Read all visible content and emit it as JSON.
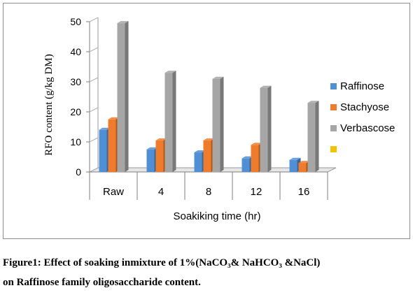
{
  "chart_data": {
    "type": "bar",
    "ylabel": "RFO content (g/kg DM)",
    "xlabel": "Soakiking time (hr)",
    "categories": [
      "Raw",
      "4",
      "8",
      "12",
      "16"
    ],
    "ylim": [
      0,
      50
    ],
    "yticks": [
      "0",
      "10",
      "20",
      "30",
      "40",
      "50"
    ],
    "series": [
      {
        "name": "Raffinose",
        "color": "#4f8fd6",
        "values": [
          14,
          7.5,
          6.5,
          4.5,
          4
        ]
      },
      {
        "name": "Stachyose",
        "color": "#f07b2a",
        "values": [
          17.5,
          10.5,
          10.5,
          9,
          3
        ]
      },
      {
        "name": "Verbascose",
        "color": "#a6a6a6",
        "values": [
          49.5,
          33,
          31,
          28,
          23
        ]
      },
      {
        "name": "",
        "color": "#f5c200",
        "values": [
          0,
          0,
          0,
          0,
          0
        ]
      }
    ],
    "grid": false,
    "legend_position": "right"
  },
  "caption": {
    "line1": "Figure1: Effect of soaking inmixture of 1%(NaCO₃& NaHCO₃ &NaCl)",
    "line2": " on Raffinose family oligosaccharide content."
  }
}
